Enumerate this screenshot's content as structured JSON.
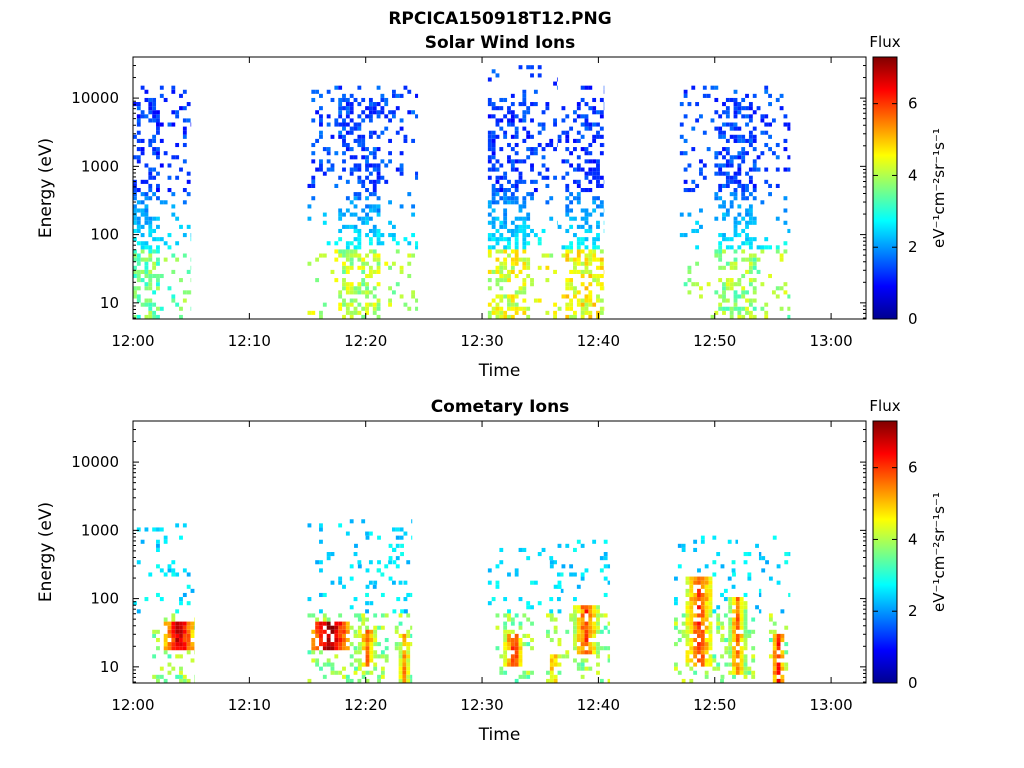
{
  "figure": {
    "title": "RPCICA150918T12.PNG"
  },
  "chart_data": [
    {
      "type": "heatmap",
      "title": "Solar Wind Ions",
      "xlabel": "Time",
      "ylabel": "Energy (eV)",
      "x_tick_labels": [
        "12:00",
        "12:10",
        "12:20",
        "12:30",
        "12:40",
        "12:50",
        "13:00"
      ],
      "x_tick_minutes": [
        0,
        10,
        20,
        30,
        40,
        50,
        60
      ],
      "xlim_minutes": [
        0,
        63
      ],
      "y_scale": "log",
      "ylim": [
        5.8,
        40000
      ],
      "y_tick_values": [
        10,
        100,
        1000,
        10000
      ],
      "y_tick_labels": [
        "10",
        "100",
        "1000",
        "10000"
      ],
      "colorbar": {
        "title": "Flux",
        "label": "eV⁻¹cm⁻²sr⁻¹s⁻¹",
        "range": [
          0,
          7.3
        ],
        "tick_values": [
          0,
          2,
          4,
          6
        ],
        "tick_labels": [
          "0",
          "2",
          "4",
          "6"
        ],
        "colormap": "jet"
      },
      "bursts": [
        {
          "t_start": 0.0,
          "t_end": 5.0,
          "core_start": 0.0,
          "core_end": 2.0,
          "e_min": 5.8,
          "e_max": 15000,
          "core_emax": 10000,
          "low_flux": 3.5,
          "high_flux": 1.3
        },
        {
          "t_start": 15.0,
          "t_end": 24.5,
          "core_start": 17.5,
          "core_end": 21.0,
          "e_min": 5.8,
          "e_max": 15000,
          "core_emax": 10000,
          "low_flux": 4.0,
          "high_flux": 1.4
        },
        {
          "t_start": 30.5,
          "t_end": 36.5,
          "core_start": 30.5,
          "core_end": 34.0,
          "e_min": 5.8,
          "e_max": 30000,
          "core_emax": 10000,
          "low_flux": 4.3,
          "high_flux": 1.3
        },
        {
          "t_start": 36.5,
          "t_end": 40.5,
          "core_start": 37.0,
          "core_end": 40.3,
          "e_min": 5.8,
          "e_max": 15000,
          "core_emax": 10000,
          "low_flux": 4.5,
          "high_flux": 1.3
        },
        {
          "t_start": 47.0,
          "t_end": 56.5,
          "core_start": 50.0,
          "core_end": 53.5,
          "e_min": 5.8,
          "e_max": 15000,
          "core_emax": 10000,
          "low_flux": 3.8,
          "high_flux": 1.4
        }
      ]
    },
    {
      "type": "heatmap",
      "title": "Cometary Ions",
      "xlabel": "Time",
      "ylabel": "Energy (eV)",
      "x_tick_labels": [
        "12:00",
        "12:10",
        "12:20",
        "12:30",
        "12:40",
        "12:50",
        "13:00"
      ],
      "x_tick_minutes": [
        0,
        10,
        20,
        30,
        40,
        50,
        60
      ],
      "xlim_minutes": [
        0,
        63
      ],
      "y_scale": "log",
      "ylim": [
        5.8,
        40000
      ],
      "y_tick_values": [
        10,
        100,
        1000,
        10000
      ],
      "y_tick_labels": [
        "10",
        "100",
        "1000",
        "10000"
      ],
      "colorbar": {
        "title": "Flux",
        "label": "eV⁻¹cm⁻²sr⁻¹s⁻¹",
        "range": [
          0,
          7.3
        ],
        "tick_values": [
          0,
          2,
          4,
          6
        ],
        "tick_labels": [
          "0",
          "2",
          "4",
          "6"
        ],
        "colormap": "jet"
      },
      "bursts": [
        {
          "t_start": 0.0,
          "t_end": 5.3,
          "peak_t": 3.8,
          "peak_width": 1.2,
          "e_low": 18,
          "e_high": 45,
          "peak_flux": 6.9,
          "sparse_emax": 1200
        },
        {
          "t_start": 15.0,
          "t_end": 24.0,
          "peak_t": 16.8,
          "peak_width": 1.6,
          "e_low": 18,
          "e_high": 45,
          "peak_flux": 7.2,
          "sparse_emax": 1500
        },
        {
          "t_start": 19.0,
          "t_end": 24.0,
          "peak_t": 20.0,
          "peak_width": 0.9,
          "e_low": 10,
          "e_high": 35,
          "peak_flux": 5.6,
          "sparse_emax": 800
        },
        {
          "t_start": 22.5,
          "t_end": 24.0,
          "peak_t": 23.2,
          "peak_width": 0.6,
          "e_low": 6,
          "e_high": 30,
          "peak_flux": 5.4,
          "sparse_emax": 600
        },
        {
          "t_start": 30.5,
          "t_end": 37.0,
          "peak_t": 32.6,
          "peak_width": 0.8,
          "e_low": 10,
          "e_high": 30,
          "peak_flux": 6.2,
          "sparse_emax": 600
        },
        {
          "t_start": 35.5,
          "t_end": 37.0,
          "peak_t": 36.0,
          "peak_width": 0.4,
          "e_low": 6,
          "e_high": 15,
          "peak_flux": 5.6,
          "sparse_emax": 800
        },
        {
          "t_start": 36.5,
          "t_end": 41.0,
          "peak_t": 38.8,
          "peak_width": 1.0,
          "e_low": 15,
          "e_high": 80,
          "peak_flux": 6.0,
          "sparse_emax": 800
        },
        {
          "t_start": 46.5,
          "t_end": 52.0,
          "peak_t": 48.5,
          "peak_width": 1.2,
          "e_low": 10,
          "e_high": 200,
          "peak_flux": 6.0,
          "sparse_emax": 1000
        },
        {
          "t_start": 50.5,
          "t_end": 54.0,
          "peak_t": 51.8,
          "peak_width": 0.8,
          "e_low": 8,
          "e_high": 100,
          "peak_flux": 5.6,
          "sparse_emax": 600
        },
        {
          "t_start": 54.0,
          "t_end": 56.5,
          "peak_t": 55.3,
          "peak_width": 0.6,
          "e_low": 6,
          "e_high": 30,
          "peak_flux": 6.2,
          "sparse_emax": 1000
        }
      ]
    }
  ]
}
